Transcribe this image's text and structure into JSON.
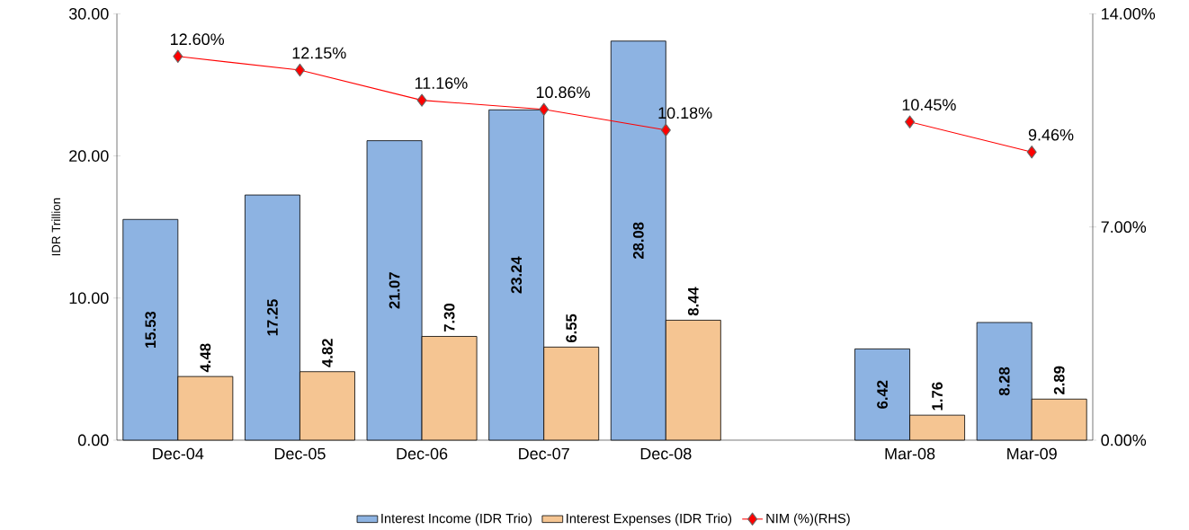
{
  "chart_data": {
    "type": "bar",
    "categories": [
      "Dec-04",
      "Dec-05",
      "Dec-06",
      "Dec-07",
      "Dec-08",
      null,
      "Mar-08",
      "Mar-09"
    ],
    "ylabel": "IDR Trillion",
    "ylim": [
      0,
      30
    ],
    "yticks": [
      {
        "value": 0,
        "label": "0.00"
      },
      {
        "value": 10,
        "label": "10.00"
      },
      {
        "value": 20,
        "label": "20.00"
      },
      {
        "value": 30,
        "label": "30.00"
      }
    ],
    "y2lim": [
      0,
      14
    ],
    "y2ticks": [
      {
        "value": 0,
        "label": "0.00%"
      },
      {
        "value": 7,
        "label": "7.00%"
      },
      {
        "value": 14,
        "label": "14.00%"
      }
    ],
    "legend": "bottom",
    "series": [
      {
        "name": "Interest Income (IDR Trio)",
        "color": "#8db3e2",
        "values": [
          15.53,
          17.25,
          21.07,
          23.24,
          28.08,
          null,
          6.42,
          8.28
        ],
        "value_labels": [
          "15.53",
          "17.25",
          "21.07",
          "23.24",
          "28.08",
          null,
          "6.42",
          "8.28"
        ]
      },
      {
        "name": "Interest Expenses (IDR Trio)",
        "color": "#f5c592",
        "values": [
          4.48,
          4.82,
          7.3,
          6.55,
          8.44,
          null,
          1.76,
          2.89
        ],
        "value_labels": [
          "4.48",
          "4.82",
          "7.30",
          "6.55",
          "8.44",
          null,
          "1.76",
          "2.89"
        ]
      },
      {
        "name": "NIM  (%)(RHS)",
        "type": "line",
        "axis": "y2",
        "color": "#ff0000",
        "marker": "diamond",
        "line_style": "solid",
        "values": [
          12.6,
          12.15,
          11.16,
          10.86,
          10.18,
          null,
          10.45,
          9.46
        ],
        "value_labels": [
          "12.60%",
          "12.15%",
          "11.16%",
          "10.86%",
          "10.18%",
          null,
          "10.45%",
          "9.46%"
        ]
      }
    ]
  }
}
